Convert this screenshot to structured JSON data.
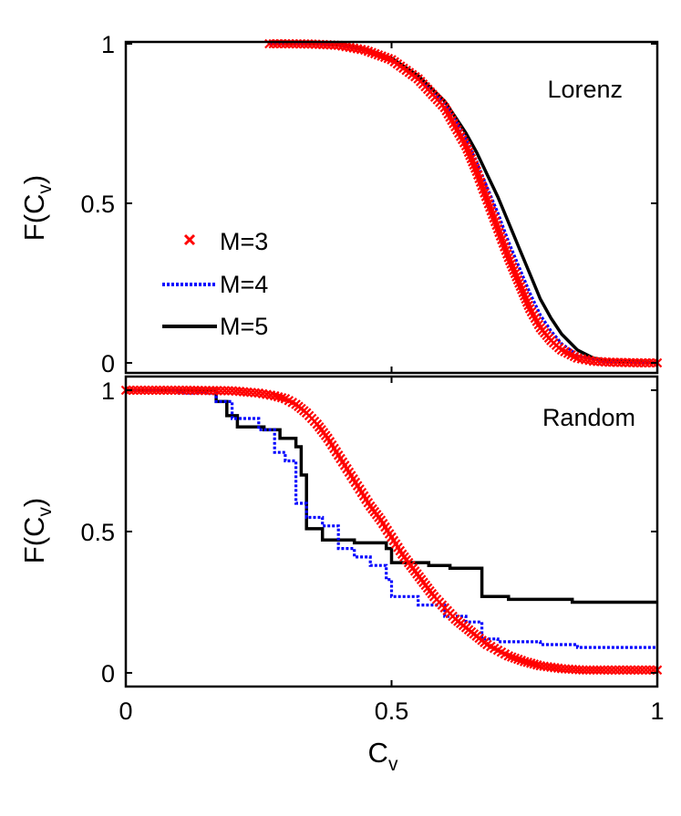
{
  "chart_data": [
    {
      "type": "line",
      "title": "Lorenz",
      "xlabel": "",
      "ylabel": "F(C_v)",
      "ylabel_main": "F(C",
      "ylabel_sub": "v",
      "ylabel_close": ")",
      "xlim": [
        0,
        1
      ],
      "ylim": [
        0,
        1
      ],
      "xticks": [],
      "yticks": [
        0,
        0.5,
        1
      ],
      "ytick_labels": [
        "0",
        "0.5",
        "1"
      ],
      "legend": {
        "position": "center-left",
        "entries": [
          {
            "label": "M=3",
            "color": "#ff0000",
            "marker": "x"
          },
          {
            "label": "M=4",
            "color": "#0000ff",
            "style": "dotted"
          },
          {
            "label": "M=5",
            "color": "#000000",
            "style": "solid"
          }
        ]
      },
      "series": [
        {
          "name": "M=3",
          "color": "#ff0000",
          "marker": "x",
          "x": [
            0.27,
            0.3,
            0.35,
            0.4,
            0.45,
            0.5,
            0.55,
            0.6,
            0.62,
            0.64,
            0.66,
            0.68,
            0.7,
            0.72,
            0.74,
            0.76,
            0.78,
            0.8,
            0.82,
            0.85,
            0.88,
            0.91,
            0.94,
            0.97,
            1.0
          ],
          "y": [
            1.0,
            1.0,
            0.999,
            0.995,
            0.98,
            0.95,
            0.89,
            0.8,
            0.74,
            0.68,
            0.6,
            0.51,
            0.42,
            0.33,
            0.25,
            0.17,
            0.11,
            0.07,
            0.04,
            0.015,
            0.005,
            0.002,
            0.001,
            0.0,
            0.0
          ]
        },
        {
          "name": "M=4",
          "color": "#0000ff",
          "style": "dotted",
          "x": [
            0.27,
            0.3,
            0.35,
            0.4,
            0.45,
            0.5,
            0.55,
            0.6,
            0.62,
            0.64,
            0.66,
            0.68,
            0.7,
            0.72,
            0.74,
            0.76,
            0.78,
            0.8,
            0.82,
            0.85,
            0.88,
            0.91,
            0.94,
            0.97,
            1.0
          ],
          "y": [
            1.0,
            1.0,
            0.999,
            0.995,
            0.98,
            0.95,
            0.89,
            0.81,
            0.76,
            0.7,
            0.63,
            0.55,
            0.47,
            0.38,
            0.3,
            0.22,
            0.15,
            0.1,
            0.06,
            0.025,
            0.01,
            0.004,
            0.002,
            0.001,
            0.0
          ]
        },
        {
          "name": "M=5",
          "color": "#000000",
          "style": "solid",
          "x": [
            0.27,
            0.3,
            0.35,
            0.4,
            0.45,
            0.5,
            0.55,
            0.6,
            0.62,
            0.64,
            0.66,
            0.68,
            0.7,
            0.72,
            0.74,
            0.76,
            0.78,
            0.8,
            0.82,
            0.85,
            0.88,
            0.91,
            0.94,
            0.97,
            1.0
          ],
          "y": [
            1.0,
            1.0,
            0.999,
            0.996,
            0.985,
            0.955,
            0.9,
            0.82,
            0.77,
            0.72,
            0.66,
            0.59,
            0.52,
            0.44,
            0.36,
            0.28,
            0.2,
            0.14,
            0.09,
            0.04,
            0.015,
            0.007,
            0.004,
            0.002,
            0.001
          ]
        }
      ]
    },
    {
      "type": "line",
      "title": "Random",
      "xlabel": "C_v",
      "xlabel_main": "C",
      "xlabel_sub": "v",
      "ylabel": "F(C_v)",
      "ylabel_main": "F(C",
      "ylabel_sub": "v",
      "ylabel_close": ")",
      "xlim": [
        0,
        1
      ],
      "ylim": [
        0,
        1
      ],
      "xticks": [
        0,
        0.5,
        1
      ],
      "xtick_labels": [
        "0",
        "0.5",
        "1"
      ],
      "yticks": [
        0,
        0.5,
        1
      ],
      "ytick_labels": [
        "0",
        "0.5",
        "1"
      ],
      "series": [
        {
          "name": "M=3",
          "color": "#ff0000",
          "marker": "x",
          "x": [
            0.0,
            0.05,
            0.1,
            0.15,
            0.2,
            0.25,
            0.28,
            0.3,
            0.32,
            0.34,
            0.36,
            0.38,
            0.4,
            0.42,
            0.44,
            0.46,
            0.48,
            0.5,
            0.52,
            0.54,
            0.56,
            0.58,
            0.6,
            0.62,
            0.64,
            0.66,
            0.68,
            0.7,
            0.72,
            0.75,
            0.78,
            0.82,
            0.86,
            0.9,
            0.95,
            1.0
          ],
          "y": [
            1.0,
            1.0,
            1.0,
            0.999,
            0.998,
            0.99,
            0.98,
            0.97,
            0.95,
            0.92,
            0.88,
            0.83,
            0.77,
            0.71,
            0.65,
            0.59,
            0.54,
            0.48,
            0.42,
            0.37,
            0.32,
            0.27,
            0.23,
            0.19,
            0.16,
            0.13,
            0.1,
            0.08,
            0.06,
            0.04,
            0.025,
            0.015,
            0.01,
            0.01,
            0.01,
            0.01
          ]
        },
        {
          "name": "M=4",
          "color": "#0000ff",
          "style": "dotted",
          "x": [
            0.0,
            0.1,
            0.1,
            0.17,
            0.17,
            0.2,
            0.2,
            0.25,
            0.25,
            0.28,
            0.28,
            0.3,
            0.3,
            0.32,
            0.32,
            0.34,
            0.34,
            0.37,
            0.37,
            0.4,
            0.4,
            0.43,
            0.43,
            0.46,
            0.46,
            0.49,
            0.49,
            0.5,
            0.5,
            0.55,
            0.55,
            0.6,
            0.6,
            0.64,
            0.64,
            0.67,
            0.67,
            0.7,
            0.7,
            0.78,
            0.78,
            0.85,
            0.85,
            1.0
          ],
          "y": [
            1.0,
            1.0,
            0.99,
            0.99,
            0.96,
            0.96,
            0.9,
            0.9,
            0.86,
            0.86,
            0.78,
            0.78,
            0.75,
            0.75,
            0.6,
            0.6,
            0.55,
            0.55,
            0.52,
            0.52,
            0.44,
            0.44,
            0.41,
            0.41,
            0.38,
            0.38,
            0.33,
            0.33,
            0.27,
            0.27,
            0.24,
            0.24,
            0.2,
            0.2,
            0.18,
            0.18,
            0.12,
            0.12,
            0.11,
            0.11,
            0.1,
            0.1,
            0.09,
            0.09
          ]
        },
        {
          "name": "M=5",
          "color": "#000000",
          "style": "solid",
          "x": [
            0.0,
            0.17,
            0.17,
            0.19,
            0.19,
            0.21,
            0.21,
            0.26,
            0.26,
            0.29,
            0.29,
            0.32,
            0.32,
            0.33,
            0.33,
            0.34,
            0.34,
            0.37,
            0.37,
            0.43,
            0.43,
            0.49,
            0.49,
            0.5,
            0.5,
            0.57,
            0.57,
            0.61,
            0.61,
            0.67,
            0.67,
            0.72,
            0.72,
            0.84,
            0.84,
            1.0
          ],
          "y": [
            1.0,
            1.0,
            0.96,
            0.96,
            0.91,
            0.91,
            0.87,
            0.87,
            0.86,
            0.86,
            0.83,
            0.83,
            0.8,
            0.8,
            0.7,
            0.7,
            0.51,
            0.51,
            0.47,
            0.47,
            0.46,
            0.46,
            0.44,
            0.44,
            0.39,
            0.39,
            0.38,
            0.38,
            0.37,
            0.37,
            0.27,
            0.27,
            0.26,
            0.26,
            0.25,
            0.25
          ]
        }
      ]
    }
  ]
}
